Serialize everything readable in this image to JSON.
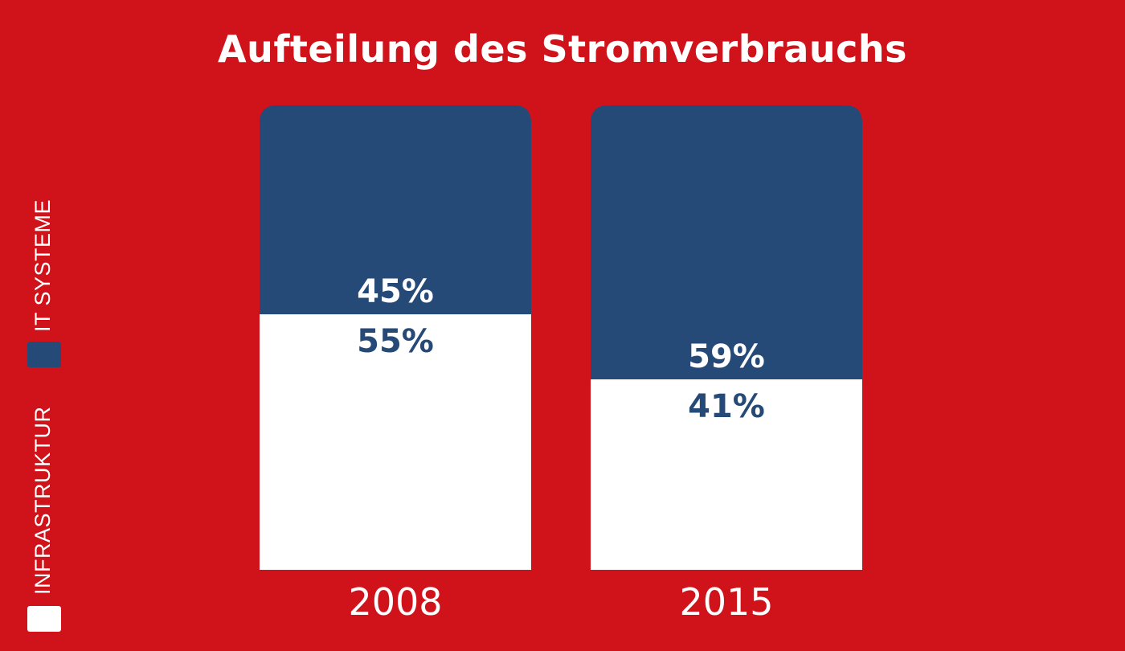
{
  "chart_data": {
    "type": "bar",
    "stacked": true,
    "normalized": true,
    "title": "Aufteilung des Stromverbrauchs",
    "categories": [
      "2008",
      "2015"
    ],
    "series": [
      {
        "name": "INFRASTRUKTUR",
        "color": "#ffffff",
        "label_color": "#264a78",
        "values": [
          55,
          41
        ],
        "labels": [
          "55%",
          "41%"
        ]
      },
      {
        "name": "IT SYSTEME",
        "color": "#264a78",
        "label_color": "#ffffff",
        "values": [
          45,
          59
        ],
        "labels": [
          "45%",
          "59%"
        ]
      }
    ],
    "ylim": [
      0,
      100
    ],
    "grid": false,
    "legend_position": "left, vertical"
  },
  "background_color": "#d0121a"
}
